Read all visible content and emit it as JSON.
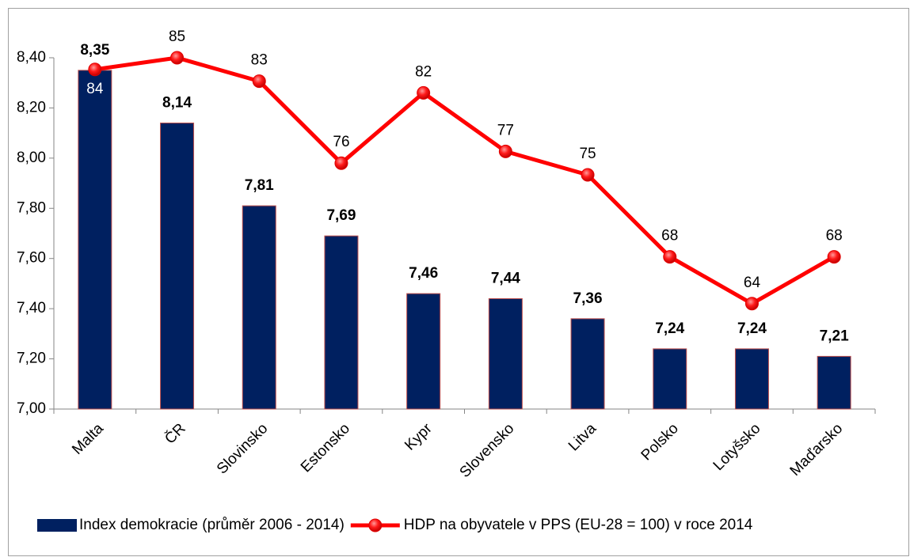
{
  "chart_data": {
    "type": "bar-line",
    "categories": [
      "Malta",
      "ČR",
      "Slovinsko",
      "Estonsko",
      "Kypr",
      "Slovensko",
      "Litva",
      "Polsko",
      "Lotyšsko",
      "Maďarsko"
    ],
    "series": [
      {
        "name": "Index demokracie (průměr 2006 - 2014)",
        "type": "bar",
        "color": "#002060",
        "values": [
          8.35,
          8.14,
          7.81,
          7.69,
          7.46,
          7.44,
          7.36,
          7.24,
          7.24,
          7.21
        ],
        "value_labels": [
          "8,35",
          "8,14",
          "7,81",
          "7,69",
          "7,46",
          "7,44",
          "7,36",
          "7,24",
          "7,24",
          "7,21"
        ]
      },
      {
        "name": "HDP na obyvatele v PPS (EU-28 = 100) v roce 2014",
        "type": "line",
        "color": "#ff0000",
        "axis": "y2",
        "values": [
          84,
          85,
          83,
          76,
          82,
          77,
          75,
          68,
          64,
          68
        ]
      }
    ],
    "ylim": [
      7,
      8.4
    ],
    "yticks": [
      {
        "value": 7,
        "label": "7,00"
      },
      {
        "value": 7.2,
        "label": "7,20"
      },
      {
        "value": 7.4,
        "label": "7,40"
      },
      {
        "value": 7.6,
        "label": "7,60"
      },
      {
        "value": 7.8,
        "label": "7,80"
      },
      {
        "value": 8,
        "label": "8,00"
      },
      {
        "value": 8.2,
        "label": "8,20"
      },
      {
        "value": 8.4,
        "label": "8,40"
      }
    ],
    "y2lim": [
      55,
      85
    ],
    "grid": false,
    "legend": "bottom"
  }
}
